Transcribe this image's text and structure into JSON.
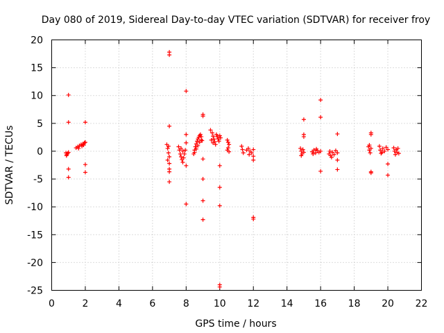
{
  "chart_data": {
    "type": "scatter",
    "title": "Day 080 of 2019, Sidereal Day-to-day VTEC variation (SDTVAR) for receiver froy",
    "xlabel": "GPS time / hours",
    "ylabel": "SDTVAR / TECUs",
    "xlim": [
      0,
      22
    ],
    "ylim": [
      -25,
      20
    ],
    "xticks": [
      "0",
      "2",
      "4",
      "6",
      "8",
      "10",
      "12",
      "14",
      "16",
      "18",
      "20",
      "22"
    ],
    "yticks": [
      "20",
      "15",
      "10",
      "5",
      "0",
      "-5",
      "-10",
      "-15",
      "-20",
      "-25"
    ],
    "grid": true,
    "marker": "plus",
    "color": "#ff0000",
    "series": [
      {
        "name": "SDTVAR",
        "points": [
          [
            0.85,
            -0.3
          ],
          [
            0.9,
            -0.6
          ],
          [
            0.95,
            -0.4
          ],
          [
            1.0,
            -0.2
          ],
          [
            0.88,
            -0.8
          ],
          [
            1.0,
            10.1
          ],
          [
            1.0,
            5.2
          ],
          [
            1.0,
            -3.2
          ],
          [
            1.0,
            -4.7
          ],
          [
            1.45,
            0.6
          ],
          [
            1.55,
            0.8
          ],
          [
            1.65,
            1.0
          ],
          [
            1.75,
            1.2
          ],
          [
            1.85,
            1.3
          ],
          [
            1.95,
            1.5
          ],
          [
            2.0,
            1.6
          ],
          [
            1.6,
            0.5
          ],
          [
            1.8,
            0.9
          ],
          [
            1.9,
            1.1
          ],
          [
            2.0,
            5.2
          ],
          [
            2.0,
            -2.4
          ],
          [
            2.0,
            -3.8
          ],
          [
            6.85,
            1.2
          ],
          [
            6.9,
            0.5
          ],
          [
            6.95,
            -0.3
          ],
          [
            7.0,
            -1.0
          ],
          [
            6.9,
            -1.6
          ],
          [
            7.0,
            -2.2
          ],
          [
            6.95,
            0.9
          ],
          [
            7.0,
            17.8
          ],
          [
            7.0,
            17.3
          ],
          [
            7.0,
            4.5
          ],
          [
            7.0,
            -3.2
          ],
          [
            7.0,
            -3.7
          ],
          [
            7.0,
            -5.5
          ],
          [
            7.55,
            0.8
          ],
          [
            7.6,
            0.2
          ],
          [
            7.65,
            -0.5
          ],
          [
            7.7,
            -1.0
          ],
          [
            7.75,
            -1.5
          ],
          [
            7.8,
            -2.0
          ],
          [
            7.85,
            -1.2
          ],
          [
            7.9,
            -0.5
          ],
          [
            7.95,
            0.2
          ],
          [
            8.0,
            -2.6
          ],
          [
            7.7,
            0.5
          ],
          [
            7.8,
            0.0
          ],
          [
            8.0,
            10.8
          ],
          [
            8.0,
            3.0
          ],
          [
            8.0,
            1.5
          ],
          [
            8.0,
            -9.5
          ],
          [
            8.45,
            -0.5
          ],
          [
            8.5,
            0.2
          ],
          [
            8.55,
            0.8
          ],
          [
            8.6,
            1.3
          ],
          [
            8.65,
            1.8
          ],
          [
            8.7,
            2.2
          ],
          [
            8.75,
            2.5
          ],
          [
            8.8,
            2.8
          ],
          [
            8.85,
            3.0
          ],
          [
            8.9,
            2.6
          ],
          [
            8.95,
            1.9
          ],
          [
            8.5,
            -0.2
          ],
          [
            8.6,
            0.4
          ],
          [
            8.7,
            1.0
          ],
          [
            8.8,
            1.6
          ],
          [
            8.9,
            2.0
          ],
          [
            9.0,
            6.6
          ],
          [
            9.0,
            6.3
          ],
          [
            9.0,
            -1.4
          ],
          [
            9.0,
            -5.0
          ],
          [
            9.0,
            -8.9
          ],
          [
            9.0,
            -12.3
          ],
          [
            9.45,
            3.8
          ],
          [
            9.55,
            3.3
          ],
          [
            9.6,
            2.7
          ],
          [
            9.65,
            2.2
          ],
          [
            9.7,
            1.7
          ],
          [
            9.75,
            1.2
          ],
          [
            9.8,
            3.0
          ],
          [
            9.85,
            2.6
          ],
          [
            9.9,
            2.2
          ],
          [
            9.95,
            1.8
          ],
          [
            10.0,
            2.8
          ],
          [
            10.05,
            2.4
          ],
          [
            9.5,
            2.0
          ],
          [
            9.6,
            1.5
          ],
          [
            10.0,
            -2.6
          ],
          [
            10.0,
            -6.5
          ],
          [
            10.0,
            -9.8
          ],
          [
            10.0,
            -24.0
          ],
          [
            10.0,
            -24.4
          ],
          [
            10.45,
            2.0
          ],
          [
            10.5,
            1.6
          ],
          [
            10.55,
            1.2
          ],
          [
            10.5,
            0.6
          ],
          [
            10.45,
            0.2
          ],
          [
            10.55,
            -0.1
          ],
          [
            11.3,
            0.9
          ],
          [
            11.35,
            0.3
          ],
          [
            11.4,
            -0.3
          ],
          [
            11.6,
            0.2
          ],
          [
            11.7,
            0.5
          ],
          [
            11.8,
            0.0
          ],
          [
            11.9,
            -0.3
          ],
          [
            12.0,
            0.3
          ],
          [
            11.75,
            -0.6
          ],
          [
            12.0,
            -0.9
          ],
          [
            12.0,
            -1.6
          ],
          [
            12.0,
            -11.9
          ],
          [
            12.0,
            -12.2
          ],
          [
            14.8,
            0.5
          ],
          [
            14.85,
            0.0
          ],
          [
            14.9,
            -0.5
          ],
          [
            14.95,
            0.3
          ],
          [
            15.0,
            -0.2
          ],
          [
            14.85,
            -0.8
          ],
          [
            15.0,
            5.7
          ],
          [
            15.0,
            3.0
          ],
          [
            15.0,
            2.6
          ],
          [
            15.5,
            -0.1
          ],
          [
            15.6,
            0.2
          ],
          [
            15.7,
            -0.3
          ],
          [
            15.8,
            0.1
          ],
          [
            15.9,
            -0.2
          ],
          [
            16.0,
            0.0
          ],
          [
            15.55,
            -0.5
          ],
          [
            15.75,
            0.4
          ],
          [
            16.0,
            9.2
          ],
          [
            16.0,
            6.1
          ],
          [
            16.0,
            -3.6
          ],
          [
            16.5,
            -0.5
          ],
          [
            16.55,
            0.0
          ],
          [
            16.6,
            -0.8
          ],
          [
            16.7,
            -0.2
          ],
          [
            16.8,
            -0.6
          ],
          [
            16.9,
            0.1
          ],
          [
            17.0,
            -0.3
          ],
          [
            16.65,
            -1.1
          ],
          [
            17.0,
            3.1
          ],
          [
            17.0,
            -1.6
          ],
          [
            17.0,
            -3.3
          ],
          [
            18.85,
            0.8
          ],
          [
            18.9,
            0.2
          ],
          [
            18.95,
            -0.3
          ],
          [
            19.0,
            0.5
          ],
          [
            18.9,
            1.1
          ],
          [
            19.0,
            3.3
          ],
          [
            19.0,
            3.0
          ],
          [
            19.0,
            -3.7
          ],
          [
            19.0,
            -3.9
          ],
          [
            19.5,
            0.9
          ],
          [
            19.55,
            0.2
          ],
          [
            19.6,
            -0.4
          ],
          [
            19.7,
            0.5
          ],
          [
            19.8,
            0.0
          ],
          [
            19.9,
            0.7
          ],
          [
            20.0,
            0.3
          ],
          [
            19.65,
            -0.2
          ],
          [
            20.0,
            -2.3
          ],
          [
            20.0,
            -4.3
          ],
          [
            20.35,
            0.6
          ],
          [
            20.4,
            0.0
          ],
          [
            20.45,
            -0.6
          ],
          [
            20.5,
            0.3
          ],
          [
            20.55,
            -0.2
          ],
          [
            20.6,
            0.5
          ],
          [
            20.65,
            -0.4
          ]
        ]
      }
    ]
  }
}
